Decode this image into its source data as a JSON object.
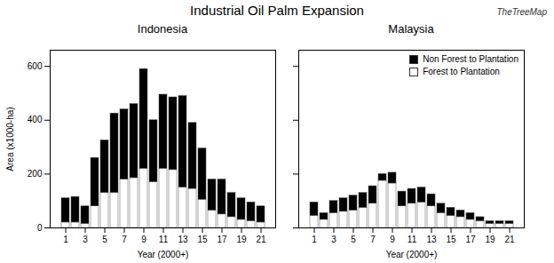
{
  "title": "Industrial Oil Palm Expansion",
  "annotations": [
    "TheTreeMap"
  ],
  "chart_data": [
    {
      "type": "bar",
      "stacked": true,
      "title": "Indonesia",
      "xlabel": "Year (2000+)",
      "ylabel": "Area (x1000-ha)",
      "categories": [
        "1",
        null,
        "3",
        null,
        "5",
        null,
        "7",
        null,
        "9",
        null,
        "11",
        null,
        "13",
        null,
        "15",
        null,
        "17",
        null,
        "19",
        null,
        "21"
      ],
      "series": [
        {
          "name": "Forest to Plantation",
          "color": "#ffffff",
          "values": [
            20,
            20,
            15,
            80,
            130,
            130,
            180,
            185,
            220,
            170,
            220,
            215,
            150,
            145,
            105,
            65,
            50,
            40,
            30,
            25,
            20
          ]
        },
        {
          "name": "Non Forest to Plantation",
          "color": "#000000",
          "values": [
            90,
            95,
            65,
            180,
            195,
            295,
            260,
            275,
            370,
            230,
            275,
            270,
            340,
            245,
            190,
            115,
            130,
            90,
            80,
            70,
            60
          ]
        }
      ],
      "ylim": [
        0,
        660
      ],
      "yticks": [
        0,
        200,
        400,
        600
      ]
    },
    {
      "type": "bar",
      "stacked": true,
      "title": "Malaysia",
      "xlabel": "Year (2000+)",
      "categories": [
        "1",
        null,
        "3",
        null,
        "5",
        null,
        "7",
        null,
        "9",
        null,
        "11",
        null,
        "13",
        null,
        "15",
        null,
        "17",
        null,
        "19",
        null,
        "21"
      ],
      "series": [
        {
          "name": "Forest to Plantation",
          "color": "#ffffff",
          "values": [
            45,
            30,
            55,
            60,
            65,
            75,
            90,
            175,
            165,
            80,
            90,
            95,
            80,
            55,
            45,
            40,
            30,
            25,
            15,
            15,
            15
          ]
        },
        {
          "name": "Non Forest to Plantation",
          "color": "#000000",
          "values": [
            50,
            25,
            45,
            50,
            55,
            55,
            65,
            25,
            40,
            55,
            55,
            55,
            45,
            35,
            30,
            25,
            25,
            15,
            10,
            10,
            10
          ]
        }
      ],
      "ylim": [
        0,
        660
      ],
      "yticks": [
        0,
        200,
        400,
        600
      ],
      "tick_labels": "x",
      "legend": "upper right"
    }
  ]
}
